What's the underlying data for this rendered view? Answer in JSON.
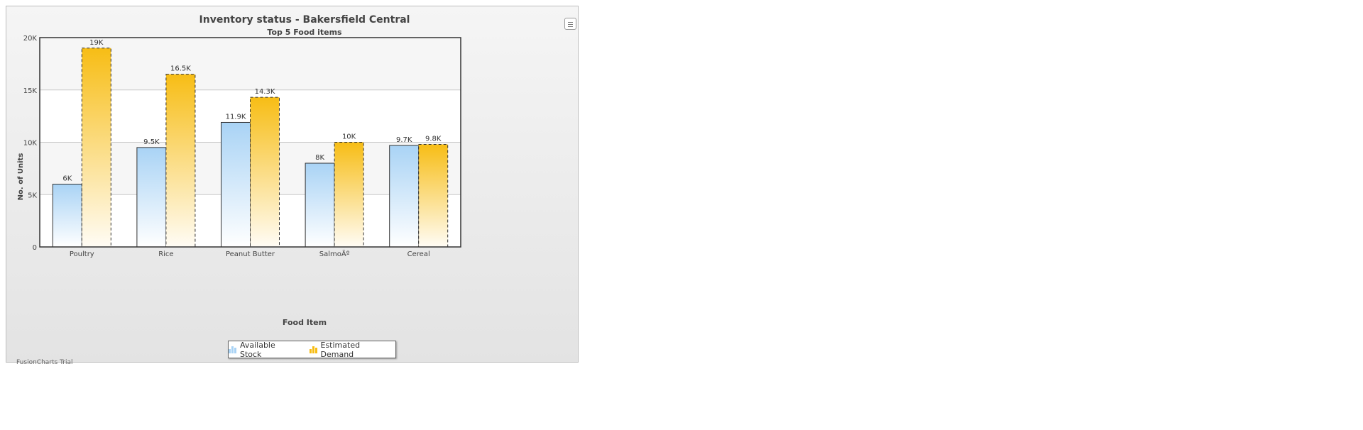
{
  "chart_data": {
    "type": "bar",
    "title": "Inventory status - Bakersfield Central",
    "subtitle": "Top 5 Food items",
    "xlabel": "Food Item",
    "ylabel": "No. of Units",
    "categories": [
      "Poultry",
      "Rice",
      "Peanut Butter",
      "SalmoÃº",
      "Cereal"
    ],
    "series": [
      {
        "name": "Available Stock",
        "values": [
          6000,
          9500,
          11900,
          8000,
          9700
        ],
        "labels": [
          "6K",
          "9.5K",
          "11.9K",
          "8K",
          "9.7K"
        ],
        "color": "#a9d3f5"
      },
      {
        "name": "Estimated Demand",
        "values": [
          19000,
          16500,
          14300,
          10000,
          9800
        ],
        "labels": [
          "19K",
          "16.5K",
          "14.3K",
          "10K",
          "9.8K"
        ],
        "color": "#f7bd15"
      }
    ],
    "ylim": [
      0,
      20000
    ],
    "yticks": [
      0,
      5000,
      10000,
      15000,
      20000
    ],
    "ytick_labels": [
      "0",
      "5K",
      "10K",
      "15K",
      "20K"
    ],
    "grid": true,
    "legend_position": "bottom"
  },
  "footer": {
    "trial_text": "FusionCharts Trial"
  },
  "menu": {
    "icon": "hamburger-menu-icon"
  }
}
